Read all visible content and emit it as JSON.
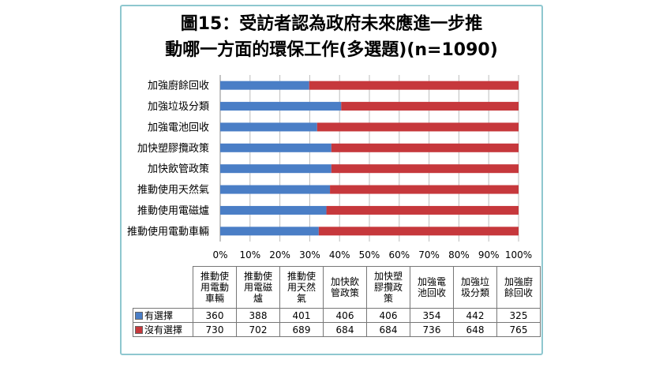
{
  "title_line1": "圖15：受訪者認為政府未來應進一步推",
  "title_line2": "動哪一方面的環保工作(多選題)(n=1090)",
  "colors": {
    "selected": "#4a7ec6",
    "not_selected": "#c6383c",
    "frame": "#8ec7cf"
  },
  "chart_data": {
    "type": "bar",
    "orientation": "horizontal",
    "stacked": "percent",
    "title": "圖15：受訪者認為政府未來應進一步推動哪一方面的環保工作(多選題)(n=1090)",
    "categories": [
      "推動使用電動車輛",
      "推動使用電磁爐",
      "推動使用天然氣",
      "加快飲管政策",
      "加快塑膠攬政策",
      "加強電池回收",
      "加強垃圾分類",
      "加強廚餘回收"
    ],
    "series": [
      {
        "name": "有選擇",
        "values": [
          360,
          388,
          401,
          406,
          406,
          354,
          442,
          325
        ]
      },
      {
        "name": "沒有選擇",
        "values": [
          730,
          702,
          689,
          684,
          684,
          736,
          648,
          765
        ]
      }
    ],
    "x_ticks": [
      "0%",
      "10%",
      "20%",
      "30%",
      "40%",
      "50%",
      "60%",
      "70%",
      "80%",
      "90%",
      "100%"
    ],
    "xlim": [
      0,
      100
    ],
    "grid": true,
    "legend": "data-table"
  },
  "table": {
    "headers": [
      [
        "推動使",
        "用電動",
        "車輛"
      ],
      [
        "推動使",
        "用電磁",
        "爐"
      ],
      [
        "推動使",
        "用天然",
        "氣"
      ],
      [
        "加快飲",
        "管政策"
      ],
      [
        "加快塑",
        "膠攬政",
        "策"
      ],
      [
        "加強電",
        "池回收"
      ],
      [
        "加強垃",
        "圾分類"
      ],
      [
        "加強廚",
        "餘回收"
      ]
    ]
  }
}
